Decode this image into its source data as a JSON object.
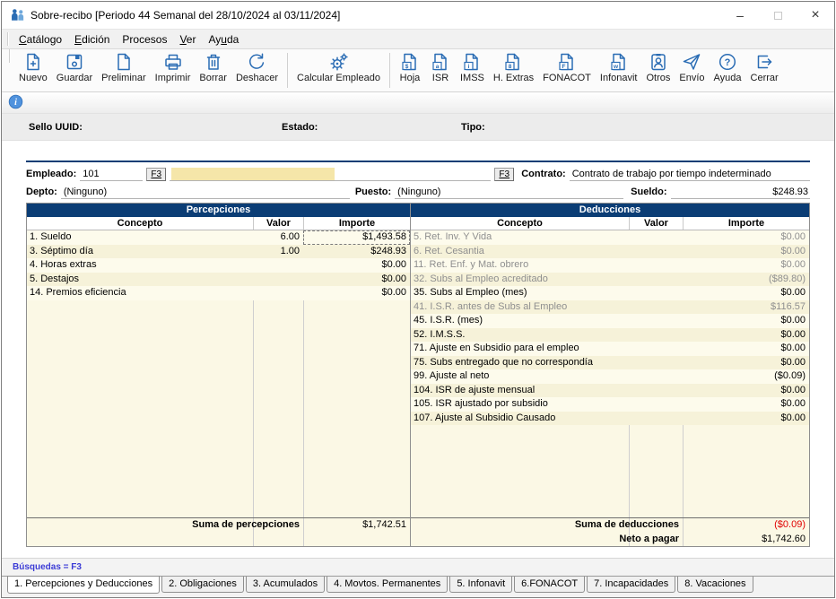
{
  "window": {
    "title": "Sobre-recibo  [Periodo 44 Semanal del 28/10/2024 al 03/11/2024]",
    "controls": {
      "minimize": "–",
      "close": "×"
    }
  },
  "menu": {
    "items": [
      {
        "label": "Catálogo",
        "accel": 0
      },
      {
        "label": "Edición",
        "accel": 0
      },
      {
        "label": "Procesos",
        "accel": -1
      },
      {
        "label": "Ver",
        "accel": 0
      },
      {
        "label": "Ayuda",
        "accel": 2
      }
    ]
  },
  "toolbar": {
    "groups": [
      {
        "buttons": [
          {
            "label": "Nuevo",
            "icon": "new-document-icon"
          },
          {
            "label": "Guardar",
            "icon": "save-icon"
          },
          {
            "label": "Preliminar",
            "icon": "document-icon"
          },
          {
            "label": "Imprimir",
            "icon": "printer-icon"
          },
          {
            "label": "Borrar",
            "icon": "trash-icon"
          },
          {
            "label": "Deshacer",
            "icon": "undo-icon"
          }
        ]
      },
      {
        "buttons": [
          {
            "label": "Calcular Empleado",
            "icon": "gear-icon"
          }
        ]
      },
      {
        "buttons": [
          {
            "label": "Hoja",
            "icon": "sheet-doc-icon"
          },
          {
            "label": "ISR",
            "icon": "isr-doc-icon"
          },
          {
            "label": "IMSS",
            "icon": "imss-doc-icon"
          },
          {
            "label": "H. Extras",
            "icon": "hextras-doc-icon"
          },
          {
            "label": "FONACOT",
            "icon": "fonacot-doc-icon"
          },
          {
            "label": "Infonavit",
            "icon": "infonavit-doc-icon"
          },
          {
            "label": "Otros",
            "icon": "id-card-icon"
          },
          {
            "label": "Envío",
            "icon": "send-icon"
          },
          {
            "label": "Ayuda",
            "icon": "help-icon"
          },
          {
            "label": "Cerrar",
            "icon": "exit-icon"
          }
        ]
      }
    ]
  },
  "status_fields": {
    "sello": "Sello UUID:",
    "estado": "Estado:",
    "tipo": "Tipo:"
  },
  "employee": {
    "label": "Empleado:",
    "number": "101",
    "f3": "F3",
    "contract_label": "Contrato:",
    "contract": "Contrato de trabajo por tiempo indeterminado",
    "dept_label": "Depto:",
    "dept": "(Ninguno)",
    "puesto_label": "Puesto:",
    "puesto": "(Ninguno)",
    "sueldo_label": "Sueldo:",
    "sueldo": "$248.93"
  },
  "tables": {
    "percepciones": {
      "title": "Percepciones",
      "columns": [
        "Concepto",
        "Valor",
        "Importe"
      ],
      "rows": [
        {
          "concepto": "1. Sueldo",
          "valor": "6.00",
          "importe": "$1,493.58",
          "focused": true
        },
        {
          "concepto": "3. Séptimo día",
          "valor": "1.00",
          "importe": "$248.93"
        },
        {
          "concepto": "4. Horas extras",
          "valor": "",
          "importe": "$0.00"
        },
        {
          "concepto": "5. Destajos",
          "valor": "",
          "importe": "$0.00"
        },
        {
          "concepto": "14. Premios eficiencia",
          "valor": "",
          "importe": "$0.00"
        }
      ],
      "total_label": "Suma de percepciones",
      "total": "$1,742.51"
    },
    "deducciones": {
      "title": "Deducciones",
      "columns": [
        "Concepto",
        "Valor",
        "Importe"
      ],
      "rows": [
        {
          "concepto": "5. Ret. Inv. Y Vida",
          "valor": "",
          "importe": "$0.00",
          "gray": true
        },
        {
          "concepto": "6. Ret. Cesantia",
          "valor": "",
          "importe": "$0.00",
          "gray": true
        },
        {
          "concepto": "11. Ret. Enf. y Mat. obrero",
          "valor": "",
          "importe": "$0.00",
          "gray": true
        },
        {
          "concepto": "32. Subs al Empleo acreditado",
          "valor": "",
          "importe": "($89.80)",
          "gray": true
        },
        {
          "concepto": "35. Subs al Empleo (mes)",
          "valor": "",
          "importe": "$0.00"
        },
        {
          "concepto": "41. I.S.R. antes de Subs al Empleo",
          "valor": "",
          "importe": "$116.57",
          "gray": true
        },
        {
          "concepto": "45. I.S.R. (mes)",
          "valor": "",
          "importe": "$0.00"
        },
        {
          "concepto": "52. I.M.S.S.",
          "valor": "",
          "importe": "$0.00"
        },
        {
          "concepto": "71. Ajuste en Subsidio para el empleo",
          "valor": "",
          "importe": "$0.00"
        },
        {
          "concepto": "75. Subs entregado que no correspondía",
          "valor": "",
          "importe": "$0.00"
        },
        {
          "concepto": "99. Ajuste al neto",
          "valor": "",
          "importe": "($0.09)"
        },
        {
          "concepto": "104. ISR de ajuste mensual",
          "valor": "",
          "importe": "$0.00"
        },
        {
          "concepto": "105. ISR ajustado por subsidio",
          "valor": "",
          "importe": "$0.00"
        },
        {
          "concepto": "107. Ajuste al Subsidio Causado",
          "valor": "",
          "importe": "$0.00"
        }
      ],
      "total_label": "Suma de deducciones",
      "total": "($0.09)",
      "total_negative": true,
      "neto_label": "Neto a pagar",
      "neto": "$1,742.60"
    }
  },
  "footer": {
    "busquedas": "Búsquedas = F3",
    "tabs": [
      {
        "label": "1. Percepciones y Deducciones",
        "active": true
      },
      {
        "label": "2. Obligaciones"
      },
      {
        "label": "3. Acumulados"
      },
      {
        "label": "4. Movtos. Permanentes"
      },
      {
        "label": "5. Infonavit"
      },
      {
        "label": "6.FONACOT"
      },
      {
        "label": "7. Incapacidades"
      },
      {
        "label": "8. Vacaciones"
      }
    ]
  },
  "colors": {
    "accent_navy": "#0b3d75",
    "icon_blue": "#2a6cb4",
    "negative_red": "#e00000",
    "row_cream": "#fbf8e5",
    "highlight_yellow": "#f5e6a9"
  }
}
